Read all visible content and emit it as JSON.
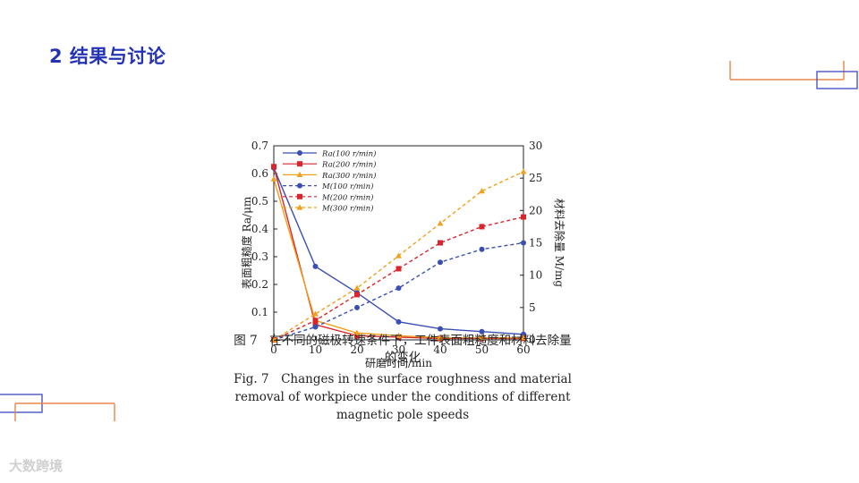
{
  "slide": {
    "title": "2 结果与讨论"
  },
  "colors": {
    "title": "#2433b4",
    "deco_orange": "#e8874a",
    "deco_blue": "#4a54c4",
    "series_blue": "#3b4fb3",
    "series_red": "#d9252b",
    "series_orange": "#f0a11c"
  },
  "chart_data": {
    "type": "line",
    "xlabel": "研磨时间/min",
    "ylabel_left": "表面粗糙度 Ra/μm",
    "ylabel_right": "材料去除量 M/mg",
    "x": [
      0,
      10,
      20,
      30,
      40,
      50,
      60
    ],
    "x_ticks": [
      "0",
      "10",
      "20",
      "30",
      "40",
      "50",
      "60"
    ],
    "y_left_ticks": [
      "0.1",
      "0.2",
      "0.3",
      "0.4",
      "0.5",
      "0.6",
      "0.7"
    ],
    "y_right_ticks": [
      "0",
      "5",
      "10",
      "15",
      "20",
      "25",
      "30"
    ],
    "ylim_left": [
      0,
      0.7
    ],
    "ylim_right": [
      0,
      30
    ],
    "legend_position": "top-left",
    "series": [
      {
        "name": "Ra(100 r/min)",
        "axis": "left",
        "style": "solid",
        "marker": "circle",
        "color": "#3b4fb3",
        "values": [
          0.62,
          0.265,
          0.17,
          0.065,
          0.04,
          0.03,
          0.02
        ]
      },
      {
        "name": "Ra(200 r/min)",
        "axis": "left",
        "style": "solid",
        "marker": "square",
        "color": "#d9252b",
        "values": [
          0.625,
          0.055,
          0.015,
          0.01,
          0.005,
          0.005,
          0.005
        ]
      },
      {
        "name": "Ra(300 r/min)",
        "axis": "left",
        "style": "solid",
        "marker": "triangle",
        "color": "#f0a11c",
        "values": [
          0.58,
          0.07,
          0.025,
          0.015,
          0.008,
          0.008,
          0.008
        ]
      },
      {
        "name": "M(100 r/min)",
        "axis": "right",
        "style": "dashed",
        "marker": "circle",
        "color": "#3b4fb3",
        "values": [
          0,
          2,
          5,
          8,
          12,
          14,
          15
        ]
      },
      {
        "name": "M(200 r/min)",
        "axis": "right",
        "style": "dashed",
        "marker": "square",
        "color": "#d9252b",
        "values": [
          0,
          3,
          7,
          11,
          15,
          17.5,
          19
        ]
      },
      {
        "name": "M(300 r/min)",
        "axis": "right",
        "style": "dashed",
        "marker": "triangle",
        "color": "#f0a11c",
        "values": [
          0,
          4,
          8,
          13,
          18,
          23,
          26
        ]
      }
    ]
  },
  "caption": {
    "zh": "图 7　在不同的磁极转速条件下，工件表面粗糙度和材料去除量的变化",
    "en": "Fig. 7　Changes in the surface roughness and material removal of workpiece under the conditions of different magnetic pole speeds"
  },
  "watermark": "大数跨境"
}
